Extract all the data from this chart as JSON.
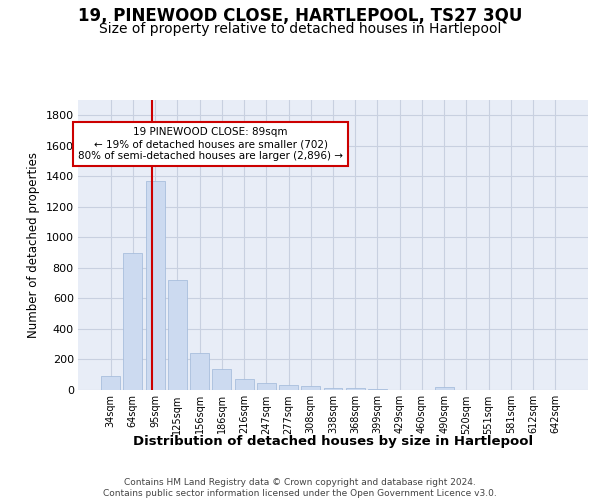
{
  "title": "19, PINEWOOD CLOSE, HARTLEPOOL, TS27 3QU",
  "subtitle": "Size of property relative to detached houses in Hartlepool",
  "xlabel": "Distribution of detached houses by size in Hartlepool",
  "ylabel": "Number of detached properties",
  "categories": [
    "34sqm",
    "64sqm",
    "95sqm",
    "125sqm",
    "156sqm",
    "186sqm",
    "216sqm",
    "247sqm",
    "277sqm",
    "308sqm",
    "338sqm",
    "368sqm",
    "399sqm",
    "429sqm",
    "460sqm",
    "490sqm",
    "520sqm",
    "551sqm",
    "581sqm",
    "612sqm",
    "642sqm"
  ],
  "values": [
    90,
    900,
    1370,
    720,
    245,
    135,
    70,
    45,
    30,
    25,
    15,
    10,
    5,
    0,
    0,
    18,
    0,
    0,
    0,
    0,
    0
  ],
  "bar_color": "#ccdaf0",
  "bar_edge_color": "#a8bedd",
  "vline_color": "#cc0000",
  "vline_x": 1.85,
  "annotation_text": "19 PINEWOOD CLOSE: 89sqm\n← 19% of detached houses are smaller (702)\n80% of semi-detached houses are larger (2,896) →",
  "annotation_box_color": "#ffffff",
  "annotation_box_edge": "#cc0000",
  "ylim": [
    0,
    1900
  ],
  "yticks": [
    0,
    200,
    400,
    600,
    800,
    1000,
    1200,
    1400,
    1600,
    1800
  ],
  "grid_color": "#c8d0e0",
  "bg_color": "#e8edf7",
  "footer": "Contains HM Land Registry data © Crown copyright and database right 2024.\nContains public sector information licensed under the Open Government Licence v3.0.",
  "title_fontsize": 12,
  "subtitle_fontsize": 10,
  "xlabel_fontsize": 9.5,
  "ylabel_fontsize": 8.5
}
